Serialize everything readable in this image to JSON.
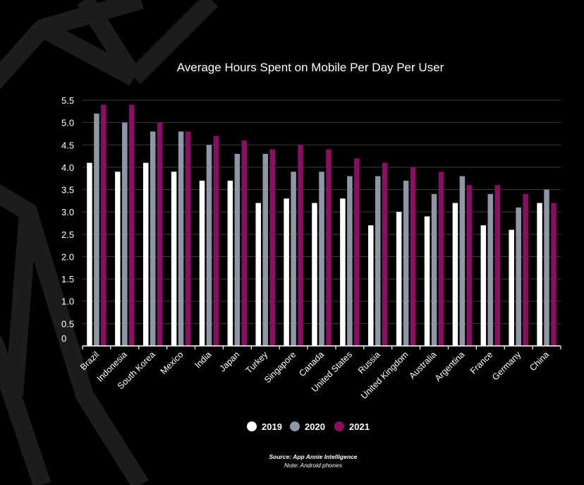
{
  "chart_data": {
    "type": "bar",
    "title": "Average Hours Spent on Mobile Per Day Per User",
    "xlabel": "",
    "ylabel": "",
    "ylim": [
      0,
      5.5
    ],
    "yticks": [
      "0",
      "0.5",
      "1.0",
      "1.5",
      "2.0",
      "2.5",
      "3.0",
      "3.5",
      "4.0",
      "4.5",
      "5.0",
      "5.5"
    ],
    "grid": true,
    "legend_position": "bottom-center",
    "categories": [
      "Brazil",
      "Indonesia",
      "South Korea",
      "Mexico",
      "India",
      "Japan",
      "Turkey",
      "Singapore",
      "Canada",
      "United States",
      "Russia",
      "United Kingdom",
      "Australia",
      "Argentina",
      "France",
      "Germany",
      "China"
    ],
    "series": [
      {
        "name": "2019",
        "color": "#ffffff",
        "values": [
          4.1,
          3.9,
          4.1,
          3.9,
          3.7,
          3.7,
          3.2,
          3.3,
          3.2,
          3.3,
          2.7,
          3.0,
          2.9,
          3.2,
          2.7,
          2.6,
          3.2
        ]
      },
      {
        "name": "2020",
        "color": "#8e97a6",
        "values": [
          5.2,
          5.0,
          4.8,
          4.8,
          4.5,
          4.3,
          4.3,
          3.9,
          3.9,
          3.8,
          3.8,
          3.7,
          3.4,
          3.8,
          3.4,
          3.1,
          3.5
        ]
      },
      {
        "name": "2021",
        "color": "#8a0f63",
        "values": [
          5.4,
          5.4,
          5.0,
          4.8,
          4.7,
          4.6,
          4.4,
          4.5,
          4.4,
          4.2,
          4.1,
          4.0,
          3.9,
          3.6,
          3.6,
          3.4,
          3.2
        ]
      }
    ]
  },
  "footer": {
    "source": "Source: App Annie Intelligence",
    "note": "Note: Android phones"
  }
}
